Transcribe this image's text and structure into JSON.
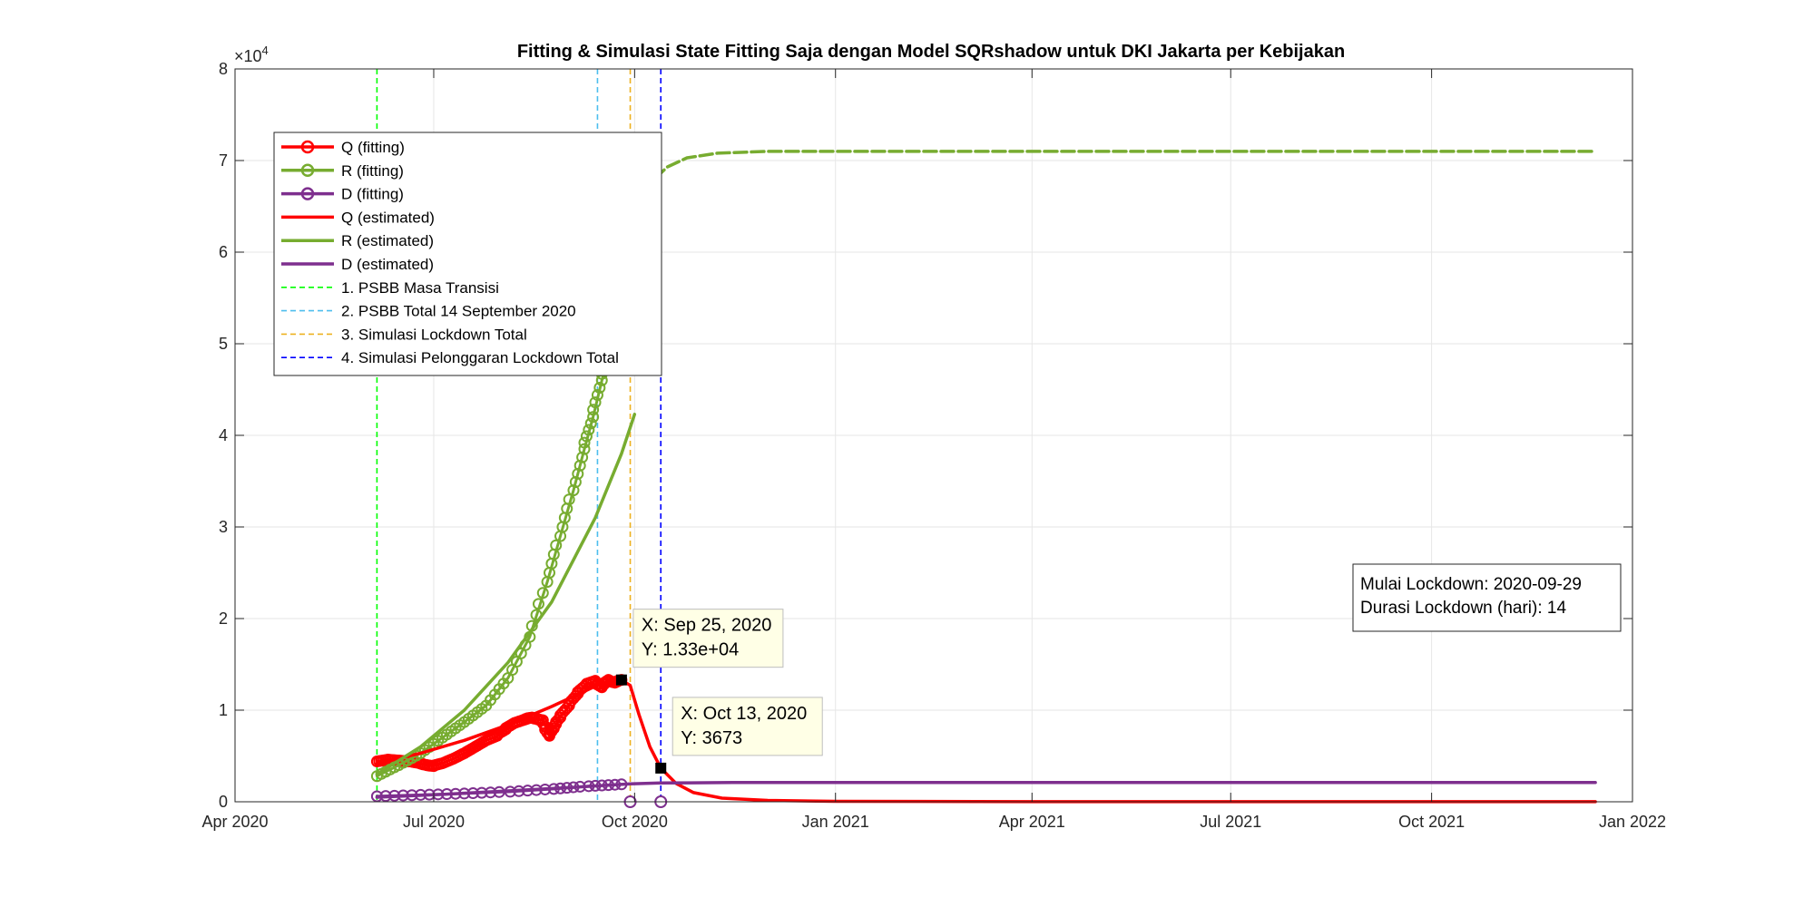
{
  "chart_data": {
    "type": "line",
    "title": "Fitting & Simulasi State Fitting Saja dengan Model SQRshadow untuk DKI Jakarta per Kebijakan",
    "y_multiplier_label": "×10",
    "y_multiplier_exponent": "4",
    "xlim": [
      "2020-04-01",
      "2022-01-01"
    ],
    "ylim": [
      0,
      80000
    ],
    "grid": true,
    "x_ticks": [
      {
        "date": "2020-04-01",
        "label": "Apr 2020"
      },
      {
        "date": "2020-07-01",
        "label": "Jul 2020"
      },
      {
        "date": "2020-10-01",
        "label": "Oct 2020"
      },
      {
        "date": "2021-01-01",
        "label": "Jan 2021"
      },
      {
        "date": "2021-04-01",
        "label": "Apr 2021"
      },
      {
        "date": "2021-07-01",
        "label": "Jul 2021"
      },
      {
        "date": "2021-10-01",
        "label": "Oct 2021"
      },
      {
        "date": "2022-01-01",
        "label": "Jan 2022"
      }
    ],
    "y_ticks": [
      {
        "value": 0,
        "label": "0"
      },
      {
        "value": 10000,
        "label": "1"
      },
      {
        "value": 20000,
        "label": "2"
      },
      {
        "value": 30000,
        "label": "3"
      },
      {
        "value": 40000,
        "label": "4"
      },
      {
        "value": 50000,
        "label": "5"
      },
      {
        "value": 60000,
        "label": "6"
      },
      {
        "value": 70000,
        "label": "7"
      },
      {
        "value": 80000,
        "label": "8"
      }
    ],
    "series": [
      {
        "name": "Q (fitting)",
        "color": "#ff0000",
        "style": "marker-line",
        "points": [
          [
            "2020-06-05",
            4400
          ],
          [
            "2020-06-10",
            4600
          ],
          [
            "2020-06-15",
            4500
          ],
          [
            "2020-06-20",
            4400
          ],
          [
            "2020-06-25",
            4200
          ],
          [
            "2020-06-28",
            4000
          ],
          [
            "2020-07-01",
            3900
          ],
          [
            "2020-07-05",
            4200
          ],
          [
            "2020-07-10",
            4700
          ],
          [
            "2020-07-15",
            5300
          ],
          [
            "2020-07-20",
            6000
          ],
          [
            "2020-07-25",
            6700
          ],
          [
            "2020-07-30",
            7200
          ],
          [
            "2020-08-03",
            7900
          ],
          [
            "2020-08-07",
            8600
          ],
          [
            "2020-08-12",
            9000
          ],
          [
            "2020-08-15",
            9200
          ],
          [
            "2020-08-18",
            9000
          ],
          [
            "2020-08-20",
            8900
          ],
          [
            "2020-08-23",
            7200
          ],
          [
            "2020-08-25",
            8000
          ],
          [
            "2020-08-28",
            9200
          ],
          [
            "2020-09-01",
            10500
          ],
          [
            "2020-09-05",
            11800
          ],
          [
            "2020-09-09",
            12800
          ],
          [
            "2020-09-13",
            13200
          ],
          [
            "2020-09-16",
            12500
          ],
          [
            "2020-09-19",
            13300
          ],
          [
            "2020-09-22",
            13000
          ],
          [
            "2020-09-25",
            13300
          ]
        ]
      },
      {
        "name": "R (fitting)",
        "color": "#77ac30",
        "style": "marker-line",
        "points": [
          [
            "2020-06-05",
            2800
          ],
          [
            "2020-06-15",
            4000
          ],
          [
            "2020-06-25",
            5300
          ],
          [
            "2020-07-05",
            7000
          ],
          [
            "2020-07-15",
            8700
          ],
          [
            "2020-07-25",
            10500
          ],
          [
            "2020-08-04",
            13500
          ],
          [
            "2020-08-14",
            18000
          ],
          [
            "2020-08-22",
            24000
          ],
          [
            "2020-08-28",
            29000
          ],
          [
            "2020-09-03",
            34000
          ],
          [
            "2020-09-08",
            38500
          ],
          [
            "2020-09-12",
            42000
          ],
          [
            "2020-09-16",
            46000
          ],
          [
            "2020-09-20",
            49500
          ],
          [
            "2020-09-25",
            52000
          ]
        ]
      },
      {
        "name": "D (fitting)",
        "color": "#7e2f8e",
        "style": "marker-line",
        "points": [
          [
            "2020-06-05",
            600
          ],
          [
            "2020-06-25",
            750
          ],
          [
            "2020-07-15",
            900
          ],
          [
            "2020-08-05",
            1100
          ],
          [
            "2020-08-25",
            1400
          ],
          [
            "2020-09-10",
            1700
          ],
          [
            "2020-09-25",
            1900
          ]
        ]
      },
      {
        "name": "Q (estimated)",
        "color": "#ff0000",
        "style": "line",
        "points": [
          [
            "2020-06-05",
            4200
          ],
          [
            "2020-06-25",
            5300
          ],
          [
            "2020-07-15",
            6700
          ],
          [
            "2020-08-04",
            8400
          ],
          [
            "2020-08-24",
            10400
          ],
          [
            "2020-09-13",
            12600
          ],
          [
            "2020-09-25",
            13300
          ],
          [
            "2020-09-29",
            12700
          ],
          [
            "2020-10-03",
            9500
          ],
          [
            "2020-10-08",
            6000
          ],
          [
            "2020-10-13",
            3673
          ],
          [
            "2020-10-20",
            2000
          ],
          [
            "2020-10-28",
            1000
          ],
          [
            "2020-11-10",
            400
          ],
          [
            "2020-12-01",
            150
          ],
          [
            "2021-01-01",
            50
          ],
          [
            "2021-04-01",
            10
          ],
          [
            "2021-12-15",
            5
          ]
        ]
      },
      {
        "name": "R (estimated)",
        "color": "#77ac30",
        "style": "line",
        "points": [
          [
            "2020-06-05",
            3000
          ],
          [
            "2020-06-25",
            6000
          ],
          [
            "2020-07-15",
            10000
          ],
          [
            "2020-08-04",
            15200
          ],
          [
            "2020-08-24",
            21800
          ],
          [
            "2020-09-13",
            31000
          ],
          [
            "2020-09-25",
            38000
          ],
          [
            "2020-10-01",
            42300
          ]
        ]
      },
      {
        "name": "R (estimated) simulasi",
        "color": "#77ac30",
        "style": "dash-line",
        "points": [
          [
            "2020-10-01",
            65000
          ],
          [
            "2020-10-08",
            67500
          ],
          [
            "2020-10-16",
            69300
          ],
          [
            "2020-10-25",
            70300
          ],
          [
            "2020-11-08",
            70800
          ],
          [
            "2020-12-01",
            71000
          ],
          [
            "2021-12-15",
            71000
          ]
        ]
      },
      {
        "name": "D (estimated)",
        "color": "#7e2f8e",
        "style": "line",
        "points": [
          [
            "2020-06-05",
            500
          ],
          [
            "2020-07-05",
            800
          ],
          [
            "2020-08-05",
            1200
          ],
          [
            "2020-09-05",
            1600
          ],
          [
            "2020-09-29",
            1950
          ],
          [
            "2020-10-13",
            2050
          ],
          [
            "2020-11-15",
            2100
          ],
          [
            "2021-12-15",
            2100
          ]
        ]
      }
    ],
    "extra_markers": [
      {
        "x": "2020-09-29",
        "y": 0,
        "color": "#7e2f8e"
      },
      {
        "x": "2020-10-13",
        "y": 0,
        "color": "#7e2f8e"
      }
    ],
    "vlines": [
      {
        "x": "2020-06-05",
        "name": "1. PSBB Masa Transisi",
        "color": "#00ff00"
      },
      {
        "x": "2020-09-14",
        "name": "2. PSBB Total 14 September 2020",
        "color": "#4dbeee"
      },
      {
        "x": "2020-09-29",
        "name": "3. Simulasi Lockdown Total",
        "color": "#edb120"
      },
      {
        "x": "2020-10-13",
        "name": "4. Simulasi Pelonggaran Lockdown Total",
        "color": "#0000ff"
      }
    ],
    "legend": {
      "location": "top-left",
      "entries": [
        {
          "label": "Q (fitting)",
          "color": "#ff0000",
          "style": "marker-line"
        },
        {
          "label": "R (fitting)",
          "color": "#77ac30",
          "style": "marker-line"
        },
        {
          "label": "D (fitting)",
          "color": "#7e2f8e",
          "style": "marker-line"
        },
        {
          "label": "Q (estimated)",
          "color": "#ff0000",
          "style": "line"
        },
        {
          "label": "R (estimated)",
          "color": "#77ac30",
          "style": "line"
        },
        {
          "label": "D (estimated)",
          "color": "#7e2f8e",
          "style": "line"
        },
        {
          "label": "1. PSBB Masa Transisi",
          "color": "#00ff00",
          "style": "dash"
        },
        {
          "label": "2. PSBB Total 14 September 2020",
          "color": "#4dbeee",
          "style": "dash"
        },
        {
          "label": "3. Simulasi Lockdown Total",
          "color": "#edb120",
          "style": "dash"
        },
        {
          "label": "4. Simulasi Pelonggaran Lockdown Total",
          "color": "#0000ff",
          "style": "dash"
        }
      ]
    },
    "annotation": {
      "location": "right-middle",
      "lines": [
        "Mulai Lockdown: 2020-09-29",
        "Durasi Lockdown (hari): 14"
      ]
    },
    "datatips": [
      {
        "x": "2020-09-25",
        "y": 13300,
        "lines": [
          "X: Sep 25, 2020",
          "Y: 1.33e+04"
        ]
      },
      {
        "x": "2020-10-13",
        "y": 3673,
        "lines": [
          "X: Oct 13, 2020",
          "Y: 3673"
        ]
      }
    ]
  }
}
